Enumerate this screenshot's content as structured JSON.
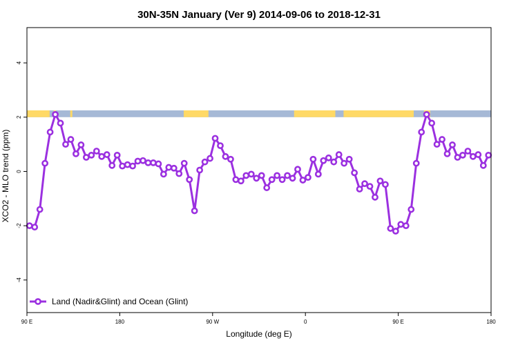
{
  "chart_data": {
    "type": "line",
    "title": "30N-35N January (Ver 9)   2014-09-06 to 2018-12-31",
    "xlabel": "Longitude (deg E)",
    "ylabel": "XCO2 - MLO trend (ppm)",
    "xlim": [
      90,
      540
    ],
    "ylim": [
      -5.2,
      5.3
    ],
    "x_ticks": [
      {
        "value": 90,
        "label": "90 E"
      },
      {
        "value": 180,
        "label": "180"
      },
      {
        "value": 270,
        "label": "90 W"
      },
      {
        "value": 360,
        "label": "0"
      },
      {
        "value": 450,
        "label": "90 E"
      },
      {
        "value": 540,
        "label": "180"
      }
    ],
    "y_ticks": [
      -4,
      -2,
      0,
      2,
      4
    ],
    "grid": false,
    "legend_position": "bottom-left",
    "series": [
      {
        "name": "Land (Nadir&Glint) and Ocean (Glint)",
        "color": "#9B30E0",
        "x": [
          92.5,
          97.5,
          102.5,
          107.5,
          112.5,
          117.5,
          122.5,
          127.5,
          132.5,
          137.5,
          142.5,
          147.5,
          152.5,
          157.5,
          162.5,
          167.5,
          172.5,
          177.5,
          182.5,
          187.5,
          192.5,
          197.5,
          202.5,
          207.5,
          212.5,
          217.5,
          222.5,
          227.5,
          232.5,
          237.5,
          242.5,
          247.5,
          252.5,
          257.5,
          262.5,
          267.5,
          272.5,
          277.5,
          282.5,
          287.5,
          292.5,
          297.5,
          302.5,
          307.5,
          312.5,
          317.5,
          322.5,
          327.5,
          332.5,
          337.5,
          342.5,
          347.5,
          352.5,
          357.5,
          362.5,
          367.5,
          372.5,
          377.5,
          382.5,
          387.5,
          392.5,
          397.5,
          402.5,
          407.5,
          412.5,
          417.5,
          422.5,
          427.5,
          432.5,
          437.5,
          442.5,
          447.5,
          452.5,
          457.5,
          462.5,
          467.5,
          472.5,
          477.5,
          482.5,
          487.5,
          492.5,
          497.5,
          502.5,
          507.5,
          512.5,
          517.5,
          522.5,
          527.5,
          532.5,
          537.5
        ],
        "y": [
          -2.0,
          -2.05,
          -1.4,
          0.3,
          1.45,
          2.1,
          1.78,
          1.0,
          1.18,
          0.65,
          0.98,
          0.52,
          0.6,
          0.75,
          0.55,
          0.62,
          0.22,
          0.6,
          0.2,
          0.25,
          0.2,
          0.38,
          0.4,
          0.32,
          0.32,
          0.28,
          -0.1,
          0.15,
          0.12,
          -0.08,
          0.3,
          -0.3,
          -1.45,
          0.05,
          0.35,
          0.48,
          1.22,
          0.95,
          0.55,
          0.45,
          -0.3,
          -0.35,
          -0.15,
          -0.1,
          -0.25,
          -0.15,
          -0.6,
          -0.3,
          -0.15,
          -0.3,
          -0.15,
          -0.25,
          0.08,
          -0.32,
          -0.22,
          0.45,
          -0.1,
          0.4,
          0.5,
          0.35,
          0.62,
          0.3,
          0.45,
          -0.05,
          -0.65,
          -0.45,
          -0.55,
          -0.95,
          -0.35,
          -0.48,
          -2.1,
          -2.2,
          -1.95,
          -2.0,
          -1.4,
          0.3,
          1.45,
          2.1,
          1.78,
          1.0,
          1.18,
          0.65,
          0.98,
          0.52,
          0.6,
          0.75,
          0.55,
          0.62,
          0.22,
          0.6
        ]
      }
    ],
    "band": {
      "y_bottom": 2.0,
      "y_top": 2.25,
      "colors": {
        "land": "#FFD966",
        "ocean": "#A6B9D6"
      },
      "land_segments": [
        [
          90,
          112
        ],
        [
          116,
          118
        ],
        [
          132,
          134
        ],
        [
          242,
          266
        ],
        [
          349,
          389
        ],
        [
          397,
          465
        ],
        [
          475,
          481
        ]
      ]
    }
  }
}
